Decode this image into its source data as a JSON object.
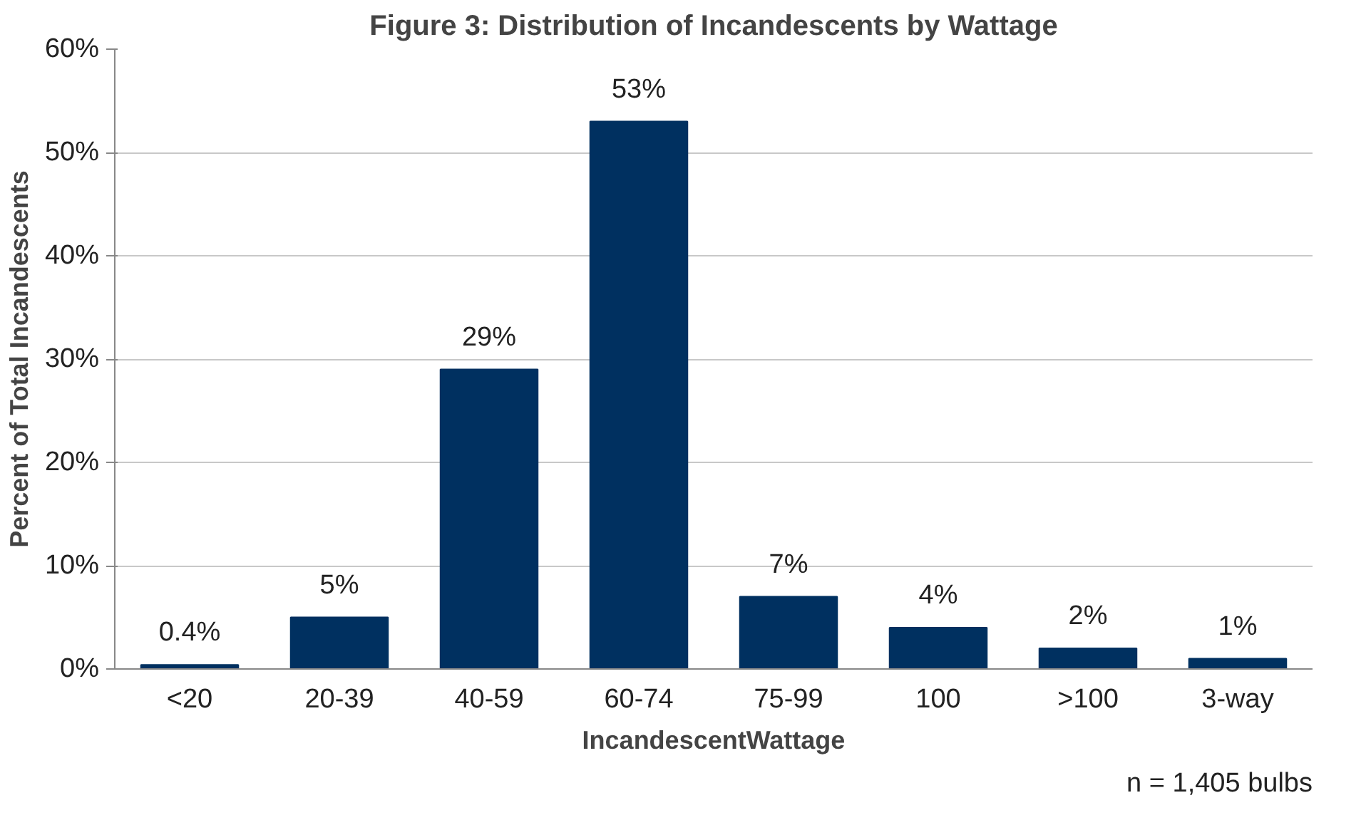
{
  "chart_data": {
    "type": "bar",
    "title": "Figure 3: Distribution of Incandescents by Wattage",
    "xlabel": "IncandescentWattage",
    "ylabel": "Percent of Total Incandescents",
    "categories": [
      "<20",
      "20-39",
      "40-59",
      "60-74",
      "75-99",
      "100",
      ">100",
      "3-way"
    ],
    "values": [
      0.4,
      5,
      29,
      53,
      7,
      4,
      2,
      1
    ],
    "value_labels": [
      "0.4%",
      "5%",
      "29%",
      "53%",
      "7%",
      "4%",
      "2%",
      "1%"
    ],
    "color": "#003060",
    "ylim": [
      0,
      60
    ],
    "yticks": [
      {
        "value": 0,
        "label": "0%"
      },
      {
        "value": 10,
        "label": "10%"
      },
      {
        "value": 20,
        "label": "20%"
      },
      {
        "value": 30,
        "label": "30%"
      },
      {
        "value": 40,
        "label": "40%"
      },
      {
        "value": 50,
        "label": "50%"
      },
      {
        "value": 60,
        "label": "60%"
      }
    ],
    "grid": "y",
    "annotations": [
      "n = 1,405 bulbs"
    ]
  }
}
